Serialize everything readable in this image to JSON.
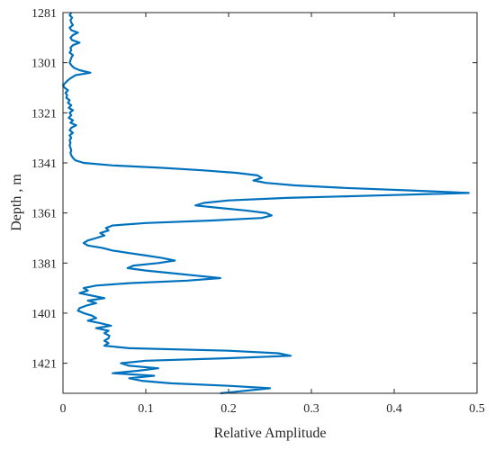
{
  "chart_data": {
    "type": "line",
    "title": "",
    "xlabel": "Relative Amplitude",
    "ylabel": "Depth , m",
    "xlim": [
      0,
      0.5
    ],
    "ylim": [
      1281,
      1433
    ],
    "y_inverted": true,
    "x_ticks": [
      "0",
      "0.1",
      "0.2",
      "0.3",
      "0.4",
      "0.5"
    ],
    "y_ticks": [
      "1281",
      "1301",
      "1321",
      "1341",
      "1361",
      "1381",
      "1401",
      "1421"
    ],
    "grid": false,
    "legend": "none",
    "series": [
      {
        "color": "#0072BD",
        "points": [
          [
            0.01,
            1281
          ],
          [
            0.008,
            1282
          ],
          [
            0.011,
            1283
          ],
          [
            0.009,
            1284
          ],
          [
            0.01,
            1285
          ],
          [
            0.012,
            1286
          ],
          [
            0.008,
            1287
          ],
          [
            0.01,
            1288
          ],
          [
            0.018,
            1289
          ],
          [
            0.012,
            1290
          ],
          [
            0.009,
            1291
          ],
          [
            0.011,
            1292
          ],
          [
            0.02,
            1293
          ],
          [
            0.012,
            1294
          ],
          [
            0.009,
            1295
          ],
          [
            0.01,
            1296
          ],
          [
            0.008,
            1297
          ],
          [
            0.012,
            1298
          ],
          [
            0.01,
            1299
          ],
          [
            0.009,
            1300
          ],
          [
            0.008,
            1301
          ],
          [
            0.01,
            1302
          ],
          [
            0.013,
            1303
          ],
          [
            0.02,
            1304
          ],
          [
            0.033,
            1305
          ],
          [
            0.015,
            1306
          ],
          [
            0.01,
            1307
          ],
          [
            0.006,
            1308
          ],
          [
            0.003,
            1309
          ],
          [
            0.0,
            1310
          ],
          [
            0.002,
            1311
          ],
          [
            0.006,
            1312
          ],
          [
            0.003,
            1313
          ],
          [
            0.005,
            1314
          ],
          [
            0.004,
            1315
          ],
          [
            0.008,
            1316
          ],
          [
            0.006,
            1317
          ],
          [
            0.01,
            1318
          ],
          [
            0.007,
            1319
          ],
          [
            0.012,
            1320
          ],
          [
            0.008,
            1321
          ],
          [
            0.01,
            1322
          ],
          [
            0.007,
            1323
          ],
          [
            0.012,
            1324
          ],
          [
            0.009,
            1325
          ],
          [
            0.016,
            1326
          ],
          [
            0.01,
            1327
          ],
          [
            0.008,
            1328
          ],
          [
            0.012,
            1329
          ],
          [
            0.008,
            1330
          ],
          [
            0.01,
            1331
          ],
          [
            0.008,
            1332
          ],
          [
            0.009,
            1333
          ],
          [
            0.008,
            1334
          ],
          [
            0.009,
            1335
          ],
          [
            0.01,
            1336
          ],
          [
            0.009,
            1337
          ],
          [
            0.01,
            1338
          ],
          [
            0.012,
            1339
          ],
          [
            0.015,
            1340
          ],
          [
            0.025,
            1341
          ],
          [
            0.06,
            1342
          ],
          [
            0.12,
            1343
          ],
          [
            0.17,
            1344
          ],
          [
            0.21,
            1345
          ],
          [
            0.235,
            1346
          ],
          [
            0.24,
            1347
          ],
          [
            0.23,
            1348
          ],
          [
            0.245,
            1349
          ],
          [
            0.28,
            1350
          ],
          [
            0.34,
            1351
          ],
          [
            0.42,
            1352
          ],
          [
            0.49,
            1353
          ],
          [
            0.38,
            1354
          ],
          [
            0.27,
            1355
          ],
          [
            0.2,
            1356
          ],
          [
            0.17,
            1357
          ],
          [
            0.16,
            1358
          ],
          [
            0.19,
            1359
          ],
          [
            0.22,
            1360
          ],
          [
            0.245,
            1361
          ],
          [
            0.252,
            1362
          ],
          [
            0.24,
            1363
          ],
          [
            0.18,
            1364
          ],
          [
            0.1,
            1365
          ],
          [
            0.06,
            1366
          ],
          [
            0.052,
            1367
          ],
          [
            0.055,
            1368
          ],
          [
            0.045,
            1369
          ],
          [
            0.05,
            1370
          ],
          [
            0.04,
            1371
          ],
          [
            0.03,
            1372
          ],
          [
            0.025,
            1373
          ],
          [
            0.03,
            1374
          ],
          [
            0.048,
            1375
          ],
          [
            0.06,
            1376
          ],
          [
            0.08,
            1377
          ],
          [
            0.1,
            1378
          ],
          [
            0.12,
            1379
          ],
          [
            0.135,
            1380
          ],
          [
            0.115,
            1381
          ],
          [
            0.085,
            1382
          ],
          [
            0.078,
            1383
          ],
          [
            0.1,
            1384
          ],
          [
            0.13,
            1385
          ],
          [
            0.16,
            1386
          ],
          [
            0.19,
            1387
          ],
          [
            0.15,
            1388
          ],
          [
            0.08,
            1389
          ],
          [
            0.04,
            1390
          ],
          [
            0.025,
            1391
          ],
          [
            0.03,
            1392
          ],
          [
            0.02,
            1393
          ],
          [
            0.035,
            1394
          ],
          [
            0.05,
            1395
          ],
          [
            0.03,
            1396
          ],
          [
            0.04,
            1397
          ],
          [
            0.028,
            1398
          ],
          [
            0.02,
            1399
          ],
          [
            0.018,
            1400
          ],
          [
            0.025,
            1401
          ],
          [
            0.035,
            1402
          ],
          [
            0.04,
            1403
          ],
          [
            0.03,
            1404
          ],
          [
            0.045,
            1405
          ],
          [
            0.058,
            1406
          ],
          [
            0.04,
            1407
          ],
          [
            0.055,
            1408
          ],
          [
            0.05,
            1409
          ],
          [
            0.056,
            1410
          ],
          [
            0.055,
            1411
          ],
          [
            0.05,
            1412
          ],
          [
            0.055,
            1413
          ],
          [
            0.05,
            1414
          ],
          [
            0.08,
            1415
          ],
          [
            0.2,
            1416
          ],
          [
            0.26,
            1417
          ],
          [
            0.275,
            1418
          ],
          [
            0.2,
            1419
          ],
          [
            0.1,
            1420
          ],
          [
            0.07,
            1421
          ],
          [
            0.08,
            1422
          ],
          [
            0.115,
            1423
          ],
          [
            0.09,
            1424
          ],
          [
            0.06,
            1425
          ],
          [
            0.11,
            1426
          ],
          [
            0.08,
            1427
          ],
          [
            0.095,
            1428
          ],
          [
            0.13,
            1429
          ],
          [
            0.2,
            1430
          ],
          [
            0.25,
            1431
          ],
          [
            0.22,
            1432
          ],
          [
            0.19,
            1433
          ]
        ]
      }
    ]
  }
}
